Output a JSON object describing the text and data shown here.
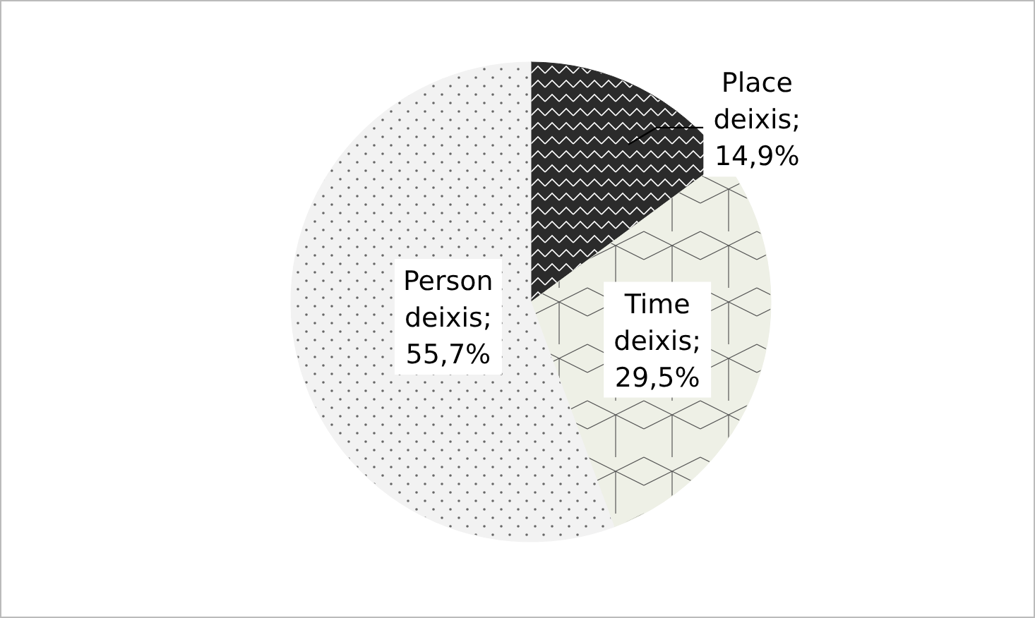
{
  "chart_data": {
    "type": "pie",
    "categories": [
      "Place deixis",
      "Time deixis",
      "Person deixis"
    ],
    "values": [
      14.9,
      29.5,
      55.7
    ],
    "colors": [
      "#2b2b2b",
      "#eef0e6",
      "#f2f2f2"
    ],
    "value_labels": [
      "; 14,9%",
      "; 29,5%",
      "; 55,7%"
    ]
  }
}
